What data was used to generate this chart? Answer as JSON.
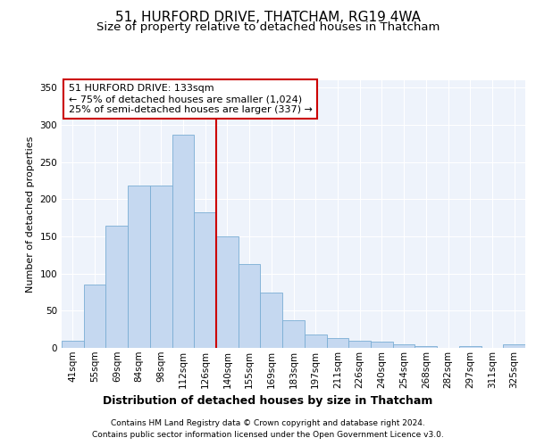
{
  "title": "51, HURFORD DRIVE, THATCHAM, RG19 4WA",
  "subtitle": "Size of property relative to detached houses in Thatcham",
  "xlabel": "Distribution of detached houses by size in Thatcham",
  "ylabel": "Number of detached properties",
  "categories": [
    "41sqm",
    "55sqm",
    "69sqm",
    "84sqm",
    "98sqm",
    "112sqm",
    "126sqm",
    "140sqm",
    "155sqm",
    "169sqm",
    "183sqm",
    "197sqm",
    "211sqm",
    "226sqm",
    "240sqm",
    "254sqm",
    "268sqm",
    "282sqm",
    "297sqm",
    "311sqm",
    "325sqm"
  ],
  "values": [
    10,
    85,
    165,
    218,
    218,
    287,
    183,
    150,
    113,
    75,
    37,
    18,
    13,
    10,
    8,
    5,
    2,
    0,
    2,
    0,
    5
  ],
  "bar_color": "#c5d8f0",
  "bar_edgecolor": "#7aadd4",
  "vline_x": 6.5,
  "vline_color": "#cc0000",
  "annotation_text": "51 HURFORD DRIVE: 133sqm\n← 75% of detached houses are smaller (1,024)\n25% of semi-detached houses are larger (337) →",
  "annotation_box_color": "#ffffff",
  "annotation_box_edgecolor": "#cc0000",
  "ylim": [
    0,
    360
  ],
  "yticks": [
    0,
    50,
    100,
    150,
    200,
    250,
    300,
    350
  ],
  "background_color": "#eef3fb",
  "plot_background": "#eef3fb",
  "footer_line1": "Contains HM Land Registry data © Crown copyright and database right 2024.",
  "footer_line2": "Contains public sector information licensed under the Open Government Licence v3.0.",
  "title_fontsize": 11,
  "subtitle_fontsize": 9.5,
  "xlabel_fontsize": 9,
  "ylabel_fontsize": 8,
  "tick_fontsize": 7.5,
  "annotation_fontsize": 8,
  "footer_fontsize": 6.5
}
